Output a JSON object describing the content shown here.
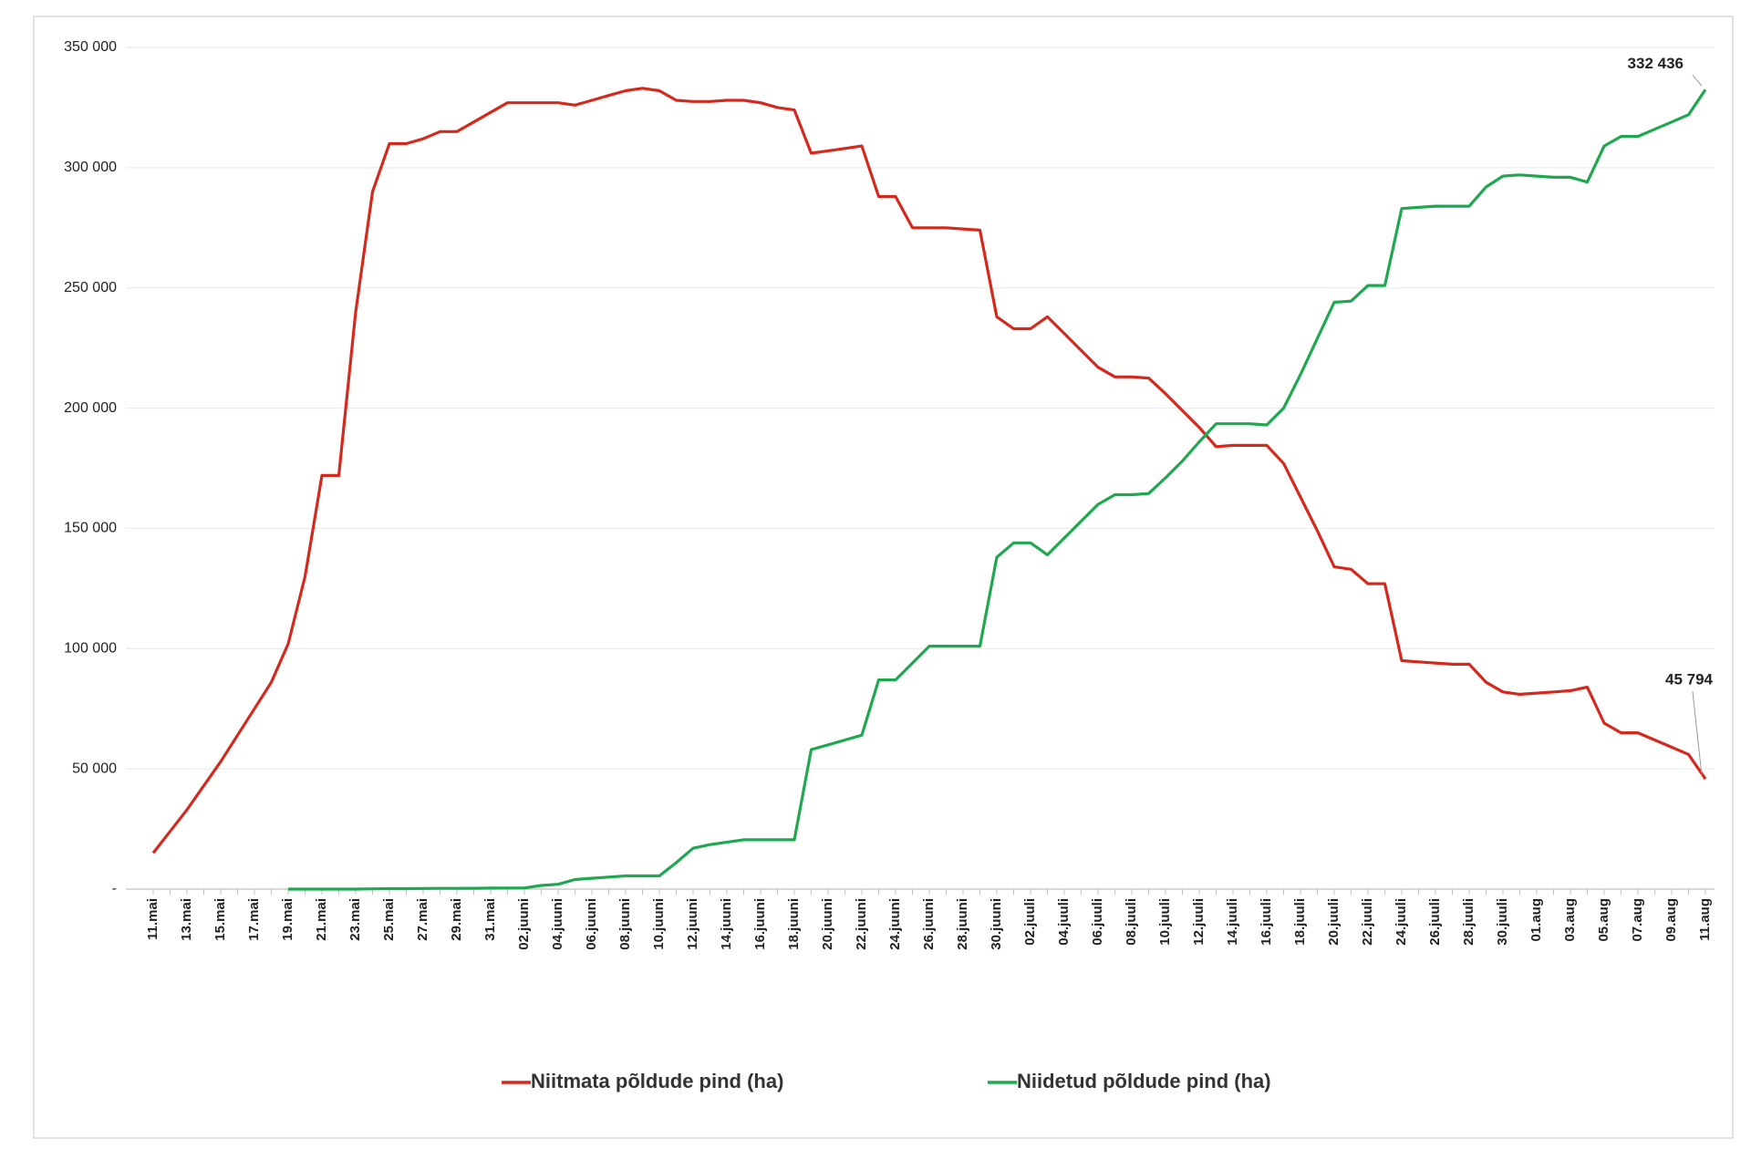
{
  "chart_data": {
    "type": "line",
    "categories": [
      "11.mai",
      null,
      "13.mai",
      null,
      "15.mai",
      null,
      "17.mai",
      null,
      "19.mai",
      null,
      "21.mai",
      null,
      "23.mai",
      null,
      "25.mai",
      null,
      "27.mai",
      null,
      "29.mai",
      null,
      "31.mai",
      null,
      "02.juuni",
      null,
      "04.juuni",
      null,
      "06.juuni",
      null,
      "08.juuni",
      null,
      "10.juuni",
      null,
      "12.juuni",
      null,
      "14.juuni",
      null,
      "16.juuni",
      null,
      "18.juuni",
      null,
      "20.juuni",
      null,
      "22.juuni",
      null,
      "24.juuni",
      null,
      "26.juuni",
      null,
      "28.juuni",
      null,
      "30.juuni",
      null,
      "02.juuli",
      null,
      "04.juuli",
      null,
      "06.juuli",
      null,
      "08.juuli",
      null,
      "10.juuli",
      null,
      "12.juuli",
      null,
      "14.juuli",
      null,
      "16.juuli",
      null,
      "18.juuli",
      null,
      "20.juuli",
      null,
      "22.juuli",
      null,
      "24.juuli",
      null,
      "26.juuli",
      null,
      "28.juuli",
      null,
      "30.juuli",
      null,
      "01.aug",
      null,
      "03.aug",
      null,
      "05.aug",
      null,
      "07.aug",
      null,
      "09.aug",
      null,
      "11.aug"
    ],
    "series": [
      {
        "name": "Niitmata põldude  pind (ha)",
        "color": "#d42a1e",
        "values": [
          15000,
          24000,
          33000,
          43000,
          53000,
          64000,
          75000,
          86000,
          102000,
          130000,
          172000,
          172000,
          240000,
          290000,
          310000,
          310000,
          312000,
          315000,
          315000,
          319000,
          323000,
          327000,
          327000,
          327000,
          327000,
          326000,
          328000,
          330000,
          332000,
          333000,
          332000,
          328000,
          327500,
          327500,
          328000,
          328000,
          327000,
          325000,
          324000,
          306000,
          307000,
          308000,
          309000,
          288000,
          288000,
          275000,
          275000,
          275000,
          274500,
          274000,
          238000,
          233000,
          233000,
          238000,
          231000,
          224000,
          217000,
          213000,
          213000,
          212500,
          206000,
          199000,
          192000,
          184000,
          184500,
          184500,
          184500,
          177000,
          163000,
          149000,
          134000,
          133000,
          127000,
          127000,
          95000,
          94500,
          94000,
          93500,
          93500,
          86000,
          82000,
          81000,
          81500,
          82000,
          82500,
          84000,
          69000,
          65000,
          65000,
          62000,
          59000,
          56000,
          45794
        ],
        "value_labels": [
          null,
          null,
          null,
          null,
          null,
          null,
          null,
          null,
          null,
          null,
          null,
          null,
          null,
          null,
          null,
          null,
          null,
          null,
          null,
          null,
          null,
          null,
          null,
          null,
          null,
          null,
          null,
          null,
          null,
          null,
          null,
          null,
          null,
          null,
          null,
          null,
          null,
          null,
          null,
          null,
          null,
          null,
          null,
          null,
          null,
          null,
          null,
          null,
          null,
          null,
          null,
          null,
          null,
          null,
          null,
          null,
          null,
          null,
          null,
          null,
          null,
          null,
          null,
          null,
          null,
          null,
          null,
          null,
          null,
          null,
          null,
          null,
          null,
          null,
          null,
          null,
          null,
          null,
          null,
          null,
          null,
          null,
          null,
          null,
          null,
          null,
          null,
          null,
          null,
          null,
          null,
          null,
          "45 794"
        ]
      },
      {
        "name": "Niidetud põldude  pind (ha)",
        "color": "#1fa84f",
        "values": [
          null,
          null,
          null,
          null,
          null,
          null,
          null,
          null,
          0,
          0,
          0,
          0,
          0,
          100,
          200,
          200,
          250,
          300,
          300,
          350,
          400,
          450,
          500,
          1500,
          2000,
          4000,
          4500,
          5000,
          5500,
          5500,
          5500,
          11000,
          17000,
          18500,
          19500,
          20500,
          20500,
          20500,
          20500,
          58000,
          60000,
          62000,
          64000,
          87000,
          87000,
          94000,
          101000,
          101000,
          101000,
          101000,
          138000,
          144000,
          144000,
          139000,
          146000,
          153000,
          160000,
          164000,
          164000,
          164500,
          171000,
          178000,
          186000,
          193500,
          193500,
          193500,
          193000,
          200000,
          214000,
          229000,
          244000,
          244500,
          251000,
          251000,
          283000,
          283500,
          284000,
          284000,
          284000,
          292000,
          296500,
          297000,
          296500,
          296000,
          296000,
          294000,
          309000,
          313000,
          313000,
          316000,
          319000,
          322000,
          332436
        ],
        "value_labels": [
          null,
          null,
          null,
          null,
          null,
          null,
          null,
          null,
          null,
          null,
          null,
          null,
          null,
          null,
          null,
          null,
          null,
          null,
          null,
          null,
          null,
          null,
          null,
          null,
          null,
          null,
          null,
          null,
          null,
          null,
          null,
          null,
          null,
          null,
          null,
          null,
          null,
          null,
          null,
          null,
          null,
          null,
          null,
          null,
          null,
          null,
          null,
          null,
          null,
          null,
          null,
          null,
          null,
          null,
          null,
          null,
          null,
          null,
          null,
          null,
          null,
          null,
          null,
          null,
          null,
          null,
          null,
          null,
          null,
          null,
          null,
          null,
          null,
          null,
          null,
          null,
          null,
          null,
          null,
          null,
          null,
          null,
          null,
          null,
          null,
          null,
          null,
          null,
          null,
          null,
          null,
          null,
          "332 436"
        ]
      }
    ],
    "ylim": [
      0,
      350000
    ],
    "yticks": [
      {
        "value": 0,
        "label": "-"
      },
      {
        "value": 50000,
        "label": "50 000"
      },
      {
        "value": 100000,
        "label": "100 000"
      },
      {
        "value": 150000,
        "label": "150 000"
      },
      {
        "value": 200000,
        "label": "200 000"
      },
      {
        "value": 250000,
        "label": "250 000"
      },
      {
        "value": 300000,
        "label": "300 000"
      },
      {
        "value": 350000,
        "label": "350 000"
      }
    ],
    "grid": true,
    "legend": "bottom"
  }
}
